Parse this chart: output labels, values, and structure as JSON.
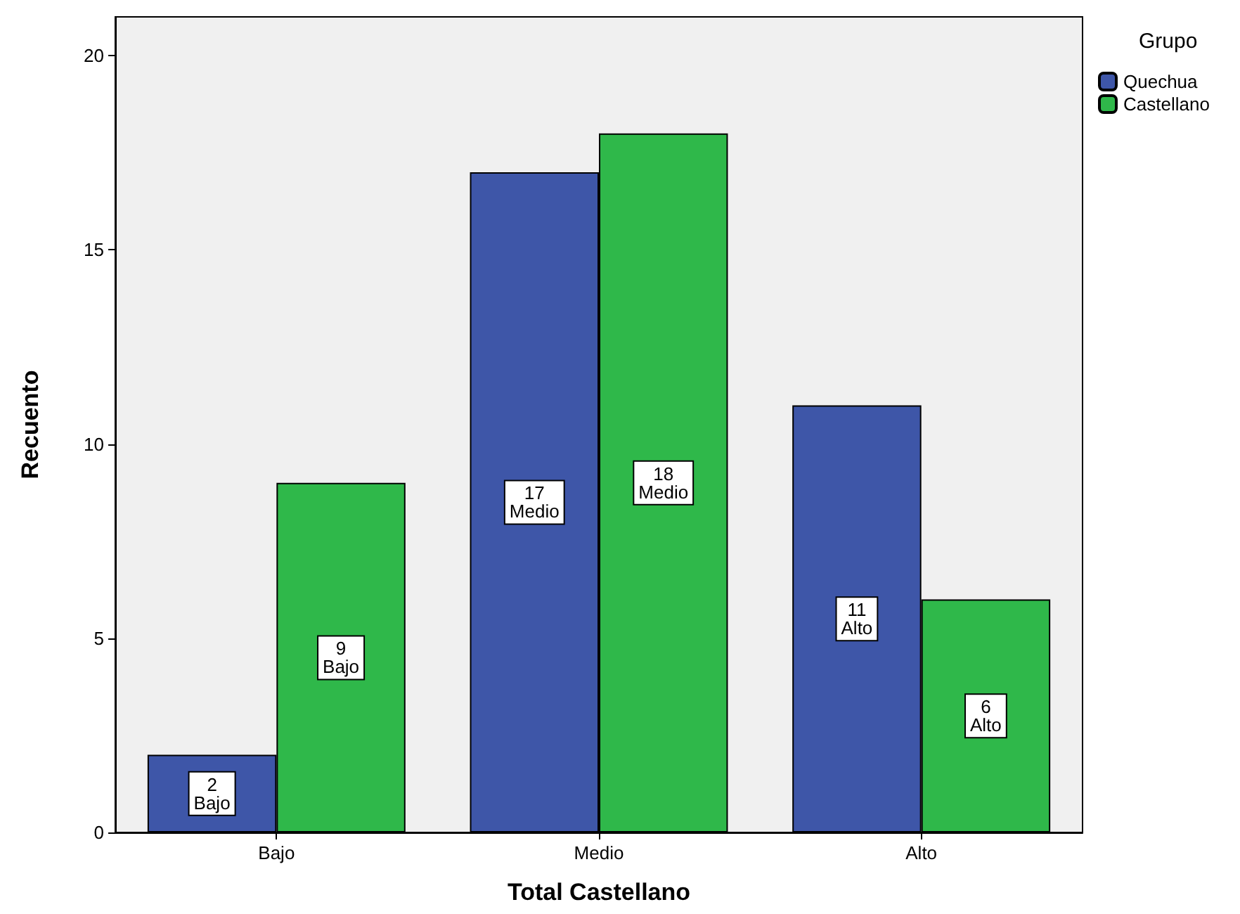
{
  "chart_data": {
    "type": "bar",
    "xlabel": "Total Castellano",
    "ylabel": "Recuento",
    "legend_title": "Grupo",
    "legend": "top right",
    "categories": [
      "Bajo",
      "Medio",
      "Alto"
    ],
    "series": [
      {
        "name": "Quechua",
        "color": "#3e56a8",
        "values": [
          2,
          17,
          11
        ],
        "value_labels": [
          "2\nBajo",
          "17\nMedio",
          "11\nAlto"
        ]
      },
      {
        "name": "Castellano",
        "color": "#2fb84a",
        "values": [
          9,
          18,
          6
        ],
        "value_labels": [
          "9\nBajo",
          "18\nMedio",
          "6\nAlto"
        ]
      }
    ],
    "ylim": [
      0,
      21
    ],
    "yticks": [
      0,
      5,
      10,
      15,
      20
    ]
  }
}
